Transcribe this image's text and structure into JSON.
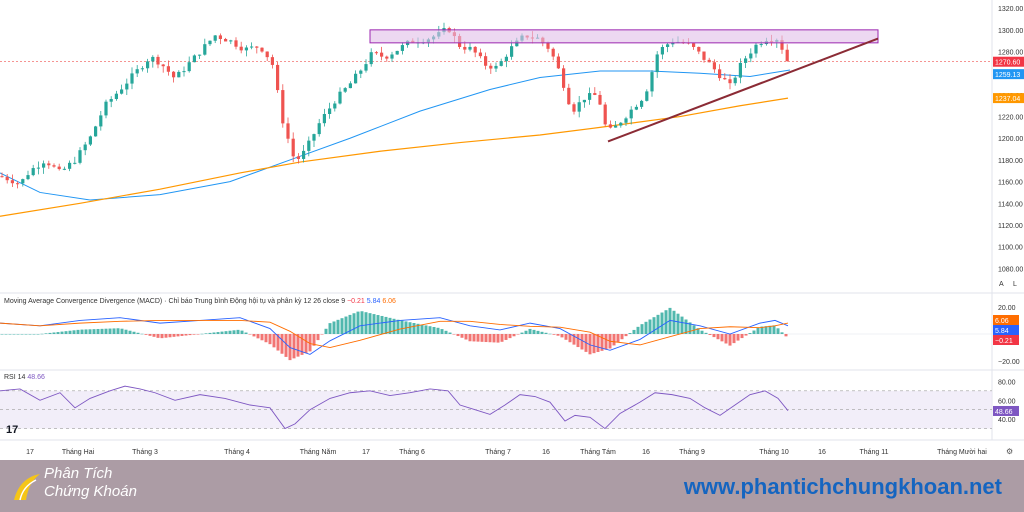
{
  "chart_data": {
    "type": "candlestick",
    "price_axis": {
      "ticks": [
        "1320.00",
        "1300.00",
        "1280.00",
        "1260.00",
        "1240.00",
        "1220.00",
        "1200.00",
        "1180.00",
        "1160.00",
        "1140.00",
        "1120.00",
        "1100.00",
        "1080.00"
      ],
      "range": [
        1060,
        1322
      ]
    },
    "price_labels": [
      {
        "value": 1270.6,
        "text": "1270.60",
        "color": "#f23645"
      },
      {
        "value": 1259.13,
        "text": "1259.13",
        "color": "#2196f3"
      },
      {
        "value": 1237.04,
        "text": "1237.04",
        "color": "#ff9800"
      }
    ],
    "x_axis_labels": [
      "17",
      "Tháng Hai",
      "Tháng 3",
      "Tháng 4",
      "Tháng Năm",
      "17",
      "Tháng 6",
      "Tháng 7",
      "16",
      "Tháng Tám",
      "16",
      "Tháng 9",
      "Tháng 10",
      "16",
      "Tháng 11",
      "Tháng Mười hai"
    ],
    "macd": {
      "title": "Moving Average Convergence Divergence (MACD) · Chỉ báo Trung bình Động hội tụ và phân kỳ 12 26 close 9",
      "values": {
        "histogram": "−0.21",
        "macd": "5.84",
        "signal": "6.06"
      },
      "axis_ticks": [
        "20.00",
        "−20.00"
      ],
      "labels": [
        {
          "value": 6.06,
          "text": "6.06",
          "color": "#ff6d00"
        },
        {
          "value": 5.84,
          "text": "5.84",
          "color": "#2962ff"
        },
        {
          "value": -0.21,
          "text": "−0.21",
          "color": "#f23645"
        }
      ]
    },
    "rsi": {
      "title": "RSI 14",
      "value": "48.66",
      "axis_ticks": [
        "80.00",
        "60.00",
        "40.00"
      ],
      "bands": [
        70,
        50,
        30
      ]
    },
    "resistance_zone": {
      "low": 1288,
      "high": 1300
    },
    "colors": {
      "up": "#26a69a",
      "down": "#ef5350",
      "ma_fast": "#2196f3",
      "ma_slow": "#ff9800",
      "trendline": "#8b2b35",
      "zone": "#9c27b0"
    }
  },
  "buttons": {
    "a": "A",
    "l": "L"
  },
  "tv_logo": "17",
  "footer": {
    "brand_line1": "Phân Tích",
    "brand_line2": "Chứng Khoán",
    "website": "www.phantichchungkhoan.net"
  }
}
